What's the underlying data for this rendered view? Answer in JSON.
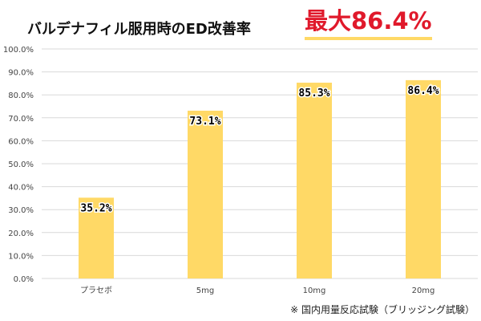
{
  "header": {
    "title": "バルデナフィル服用時のED改善率",
    "highlight": "最大86.4%",
    "highlight_color": "#e0192b"
  },
  "footnote": "※ 国内用量反応試験（ブリッジング試験）",
  "chart_data": {
    "type": "bar",
    "categories": [
      "プラセボ",
      "5mg",
      "10mg",
      "20mg"
    ],
    "values": [
      35.2,
      73.1,
      85.3,
      86.4
    ],
    "value_labels": [
      "35.2%",
      "73.1%",
      "85.3%",
      "86.4%"
    ],
    "ylim": [
      0,
      100
    ],
    "yticks": [
      "0.0%",
      "10.0%",
      "20.0%",
      "30.0%",
      "40.0%",
      "50.0%",
      "60.0%",
      "70.0%",
      "80.0%",
      "90.0%",
      "100.0%"
    ],
    "grid": true,
    "legend": "none",
    "bar_color": "#ffd966",
    "grid_color": "#d9d9d9"
  }
}
